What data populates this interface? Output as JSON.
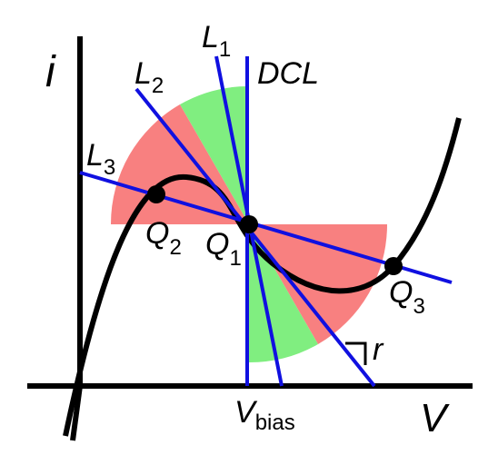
{
  "axes": {
    "y": "i",
    "x": "V"
  },
  "lines": [
    {
      "main": "L",
      "sub": "1"
    },
    {
      "main": "L",
      "sub": "2"
    },
    {
      "main": "L",
      "sub": "3"
    },
    {
      "main": "DCL"
    }
  ],
  "points": [
    {
      "main": "Q",
      "sub": "1"
    },
    {
      "main": "Q",
      "sub": "2"
    },
    {
      "main": "Q",
      "sub": "3"
    }
  ],
  "bias": {
    "main": "V",
    "sub": "bias"
  },
  "resistance": "r"
}
